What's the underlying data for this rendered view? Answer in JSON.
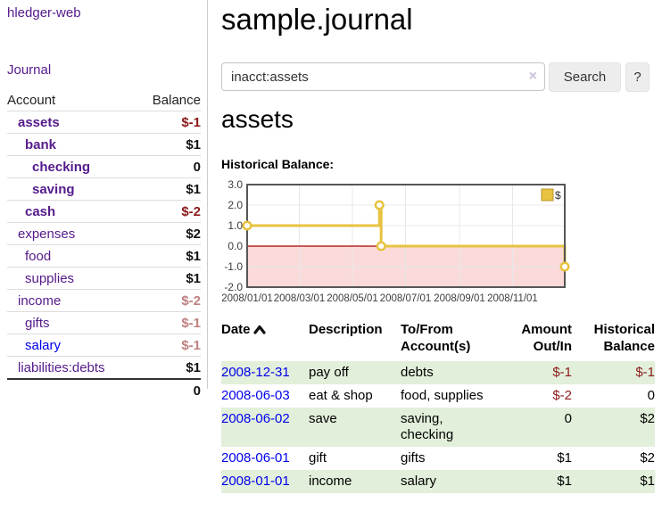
{
  "app": {
    "title": "hledger-web"
  },
  "sidebar": {
    "journal_link": "Journal",
    "header": {
      "account": "Account",
      "balance": "Balance"
    },
    "accounts": [
      {
        "name": "assets",
        "balance": "$-1"
      },
      {
        "name": "bank",
        "balance": "$1"
      },
      {
        "name": "checking",
        "balance": "0"
      },
      {
        "name": "saving",
        "balance": "$1"
      },
      {
        "name": "cash",
        "balance": "$-2"
      },
      {
        "name": "expenses",
        "balance": "$2"
      },
      {
        "name": "food",
        "balance": "$1"
      },
      {
        "name": "supplies",
        "balance": "$1"
      },
      {
        "name": "income",
        "balance": "$-2"
      },
      {
        "name": "gifts",
        "balance": "$-1"
      },
      {
        "name": "salary",
        "balance": "$-1"
      },
      {
        "name": "liabilities:debts",
        "balance": "$1"
      }
    ],
    "total": "0"
  },
  "main": {
    "title": "sample.journal",
    "search": {
      "value": "inacct:assets",
      "clear_icon": "×",
      "button_label": "Search",
      "help_label": "?"
    },
    "account_heading": "assets",
    "chart_label": "Historical Balance:"
  },
  "chart_data": {
    "type": "line",
    "style": "steps",
    "title": "Historical Balance",
    "series": [
      {
        "name": "$",
        "color": "#e7c340",
        "points": [
          [
            "2008-01-01",
            1
          ],
          [
            "2008-06-01",
            2
          ],
          [
            "2008-06-02",
            2
          ],
          [
            "2008-06-03",
            0
          ],
          [
            "2008-12-31",
            -1
          ]
        ]
      }
    ],
    "xrange": [
      "2008-01-01",
      "2008-12-31"
    ],
    "ylim": [
      -2,
      3
    ],
    "yticks": [
      {
        "v": 3,
        "label": "3.0"
      },
      {
        "v": 2,
        "label": "2.0"
      },
      {
        "v": 1,
        "label": "1.0"
      },
      {
        "v": 0,
        "label": "0.0"
      },
      {
        "v": -1,
        "label": "-1.0"
      },
      {
        "v": -2,
        "label": "-2.0"
      }
    ],
    "xticks": [
      {
        "v": "2008-01-01",
        "label": "2008/01/01"
      },
      {
        "v": "2008-03-01",
        "label": "2008/03/01"
      },
      {
        "v": "2008-05-01",
        "label": "2008/05/01"
      },
      {
        "v": "2008-07-01",
        "label": "2008/07/01"
      },
      {
        "v": "2008-09-01",
        "label": "2008/09/01"
      },
      {
        "v": "2008-11-01",
        "label": "2008/11/01"
      }
    ],
    "grid": true,
    "grid_color": "#e8e8e8",
    "border_color": "#565656",
    "negative_region_color": "#fbdada",
    "zero_line_color": "#aa0000",
    "point_fill": "#ffffff",
    "legend_position": "top-right",
    "legend_label": "$"
  },
  "register": {
    "sort_icon": "chevron-up",
    "headers": {
      "date": "Date",
      "description": "Description",
      "tofrom_line1": "To/From",
      "tofrom_line2": "Account(s)",
      "amount_line1": "Amount",
      "amount_line2": "Out/In",
      "balance_line1": "Historical",
      "balance_line2": "Balance"
    },
    "rows": [
      {
        "date": "2008-12-31",
        "description": "pay off",
        "accounts": "debts",
        "amount": "$-1",
        "balance": "$-1"
      },
      {
        "date": "2008-06-03",
        "description": "eat & shop",
        "accounts": "food, supplies",
        "amount": "$-2",
        "balance": "0"
      },
      {
        "date": "2008-06-02",
        "description": "save",
        "accounts": "saving,\nchecking",
        "amount": "0",
        "balance": "$2"
      },
      {
        "date": "2008-06-01",
        "description": "gift",
        "accounts": "gifts",
        "amount": "$1",
        "balance": "$2"
      },
      {
        "date": "2008-01-01",
        "description": "income",
        "accounts": "salary",
        "amount": "$1",
        "balance": "$1"
      }
    ]
  }
}
